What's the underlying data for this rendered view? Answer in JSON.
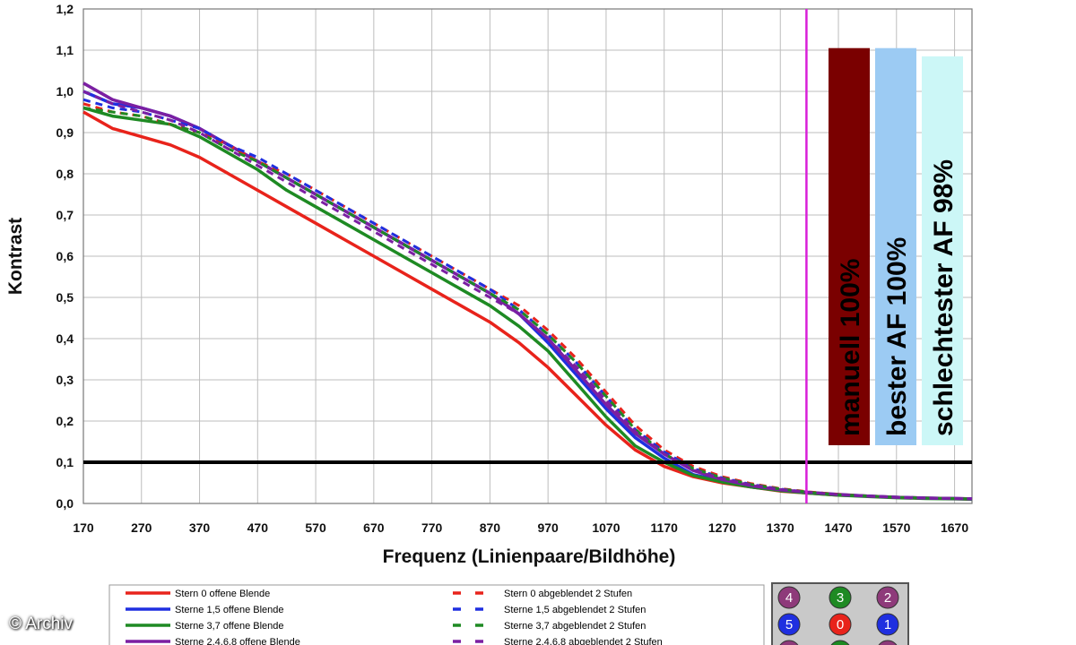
{
  "credit": "© Archiv",
  "chart_data": {
    "type": "line",
    "xlabel": "Frequenz (Linienpaare/Bildhöhe)",
    "ylabel": "Kontrast",
    "xlim": [
      170,
      1700
    ],
    "ylim": [
      0,
      1.2
    ],
    "x_ticks": [
      170,
      270,
      370,
      470,
      570,
      670,
      770,
      870,
      970,
      1070,
      1170,
      1270,
      1370,
      1470,
      1570,
      1670
    ],
    "y_ticks": [
      "0,0",
      "0,1",
      "0,2",
      "0,3",
      "0,4",
      "0,5",
      "0,6",
      "0,7",
      "0,8",
      "0,9",
      "1,0",
      "1,1",
      "1,2"
    ],
    "grid": true,
    "reference_line": {
      "y": 0.1,
      "color": "#000000"
    },
    "vertical_marker": {
      "x": 1415,
      "color": "#d81fd8"
    },
    "x": [
      170,
      220,
      270,
      320,
      370,
      420,
      470,
      520,
      570,
      620,
      670,
      720,
      770,
      820,
      870,
      920,
      970,
      1020,
      1070,
      1120,
      1170,
      1220,
      1270,
      1320,
      1370,
      1420,
      1470,
      1520,
      1570,
      1620,
      1670,
      1700
    ],
    "series": [
      {
        "name": "Stern 0 offene Blende",
        "style": "solid",
        "color": "#e8231b",
        "values": [
          0.95,
          0.91,
          0.89,
          0.87,
          0.84,
          0.8,
          0.76,
          0.72,
          0.68,
          0.64,
          0.6,
          0.56,
          0.52,
          0.48,
          0.44,
          0.39,
          0.33,
          0.26,
          0.19,
          0.13,
          0.09,
          0.065,
          0.05,
          0.04,
          0.03,
          0.025,
          0.02,
          0.018,
          0.015,
          0.013,
          0.012,
          0.011
        ]
      },
      {
        "name": "Sterne 1,5 offene Blende",
        "style": "solid",
        "color": "#1f2fe0",
        "values": [
          1.0,
          0.97,
          0.96,
          0.94,
          0.91,
          0.87,
          0.83,
          0.79,
          0.75,
          0.71,
          0.67,
          0.63,
          0.59,
          0.55,
          0.51,
          0.46,
          0.39,
          0.31,
          0.23,
          0.16,
          0.11,
          0.07,
          0.055,
          0.04,
          0.032,
          0.026,
          0.021,
          0.018,
          0.015,
          0.013,
          0.012,
          0.011
        ]
      },
      {
        "name": "Sterne 3,7 offene Blende",
        "style": "solid",
        "color": "#1e8a23",
        "values": [
          0.96,
          0.94,
          0.93,
          0.92,
          0.89,
          0.85,
          0.81,
          0.76,
          0.72,
          0.68,
          0.64,
          0.6,
          0.56,
          0.52,
          0.48,
          0.43,
          0.37,
          0.29,
          0.21,
          0.14,
          0.1,
          0.068,
          0.052,
          0.04,
          0.031,
          0.025,
          0.02,
          0.017,
          0.014,
          0.012,
          0.011,
          0.01
        ]
      },
      {
        "name": "Sterne 2,4,6,8 offene Blende",
        "style": "solid",
        "color": "#7b1fa2",
        "values": [
          1.02,
          0.98,
          0.96,
          0.94,
          0.91,
          0.87,
          0.83,
          0.79,
          0.75,
          0.71,
          0.67,
          0.63,
          0.59,
          0.55,
          0.51,
          0.46,
          0.4,
          0.32,
          0.24,
          0.17,
          0.12,
          0.08,
          0.058,
          0.043,
          0.033,
          0.027,
          0.022,
          0.018,
          0.015,
          0.013,
          0.012,
          0.011
        ]
      },
      {
        "name": "Stern 0 abgeblendet 2 Stufen",
        "style": "dashed",
        "color": "#e8231b",
        "values": [
          0.97,
          0.95,
          0.94,
          0.92,
          0.9,
          0.87,
          0.83,
          0.8,
          0.76,
          0.72,
          0.68,
          0.64,
          0.6,
          0.56,
          0.52,
          0.48,
          0.42,
          0.35,
          0.27,
          0.19,
          0.13,
          0.09,
          0.065,
          0.048,
          0.036,
          0.028,
          0.022,
          0.018,
          0.015,
          0.013,
          0.012,
          0.011
        ]
      },
      {
        "name": "Sterne 1,5 abgeblendet 2 Stufen",
        "style": "dashed",
        "color": "#1f2fe0",
        "values": [
          0.98,
          0.96,
          0.95,
          0.93,
          0.91,
          0.87,
          0.84,
          0.8,
          0.76,
          0.72,
          0.68,
          0.64,
          0.6,
          0.56,
          0.52,
          0.47,
          0.41,
          0.34,
          0.26,
          0.18,
          0.125,
          0.085,
          0.062,
          0.046,
          0.035,
          0.027,
          0.021,
          0.018,
          0.015,
          0.013,
          0.012,
          0.011
        ]
      },
      {
        "name": "Sterne 3,7 abgeblendet 2 Stufen",
        "style": "dashed",
        "color": "#1e8a23",
        "values": [
          0.96,
          0.95,
          0.94,
          0.92,
          0.9,
          0.86,
          0.83,
          0.79,
          0.75,
          0.71,
          0.67,
          0.63,
          0.59,
          0.55,
          0.51,
          0.47,
          0.41,
          0.34,
          0.26,
          0.18,
          0.12,
          0.085,
          0.062,
          0.046,
          0.035,
          0.027,
          0.021,
          0.018,
          0.015,
          0.013,
          0.012,
          0.011
        ]
      },
      {
        "name": "Sterne 2,4,6,8 abgeblendet 2 Stufen",
        "style": "dashed",
        "color": "#7b1fa2",
        "values": [
          1.0,
          0.97,
          0.95,
          0.93,
          0.9,
          0.86,
          0.82,
          0.78,
          0.74,
          0.7,
          0.66,
          0.62,
          0.58,
          0.54,
          0.5,
          0.46,
          0.4,
          0.33,
          0.25,
          0.175,
          0.12,
          0.082,
          0.06,
          0.045,
          0.034,
          0.027,
          0.021,
          0.018,
          0.015,
          0.013,
          0.012,
          0.011
        ]
      }
    ],
    "bars": [
      {
        "label": "manuell 100%",
        "color": "#7a0000",
        "value": 1.105
      },
      {
        "label": "bester AF 100%",
        "color": "#9ccbf3",
        "value": 1.105
      },
      {
        "label": "schlechtester AF 98%",
        "color": "#ccf7f7",
        "value": 1.085
      }
    ],
    "badges": [
      {
        "label": "4",
        "color": "#8e3a7a"
      },
      {
        "label": "3",
        "color": "#1e8a23"
      },
      {
        "label": "2",
        "color": "#8e3a7a"
      },
      {
        "label": "5",
        "color": "#1f2fe0"
      },
      {
        "label": "0",
        "color": "#e8231b"
      },
      {
        "label": "1",
        "color": "#1f2fe0"
      },
      {
        "label": "",
        "color": "#8e3a7a"
      },
      {
        "label": "",
        "color": "#1e8a23"
      },
      {
        "label": "",
        "color": "#8e3a7a"
      }
    ]
  }
}
